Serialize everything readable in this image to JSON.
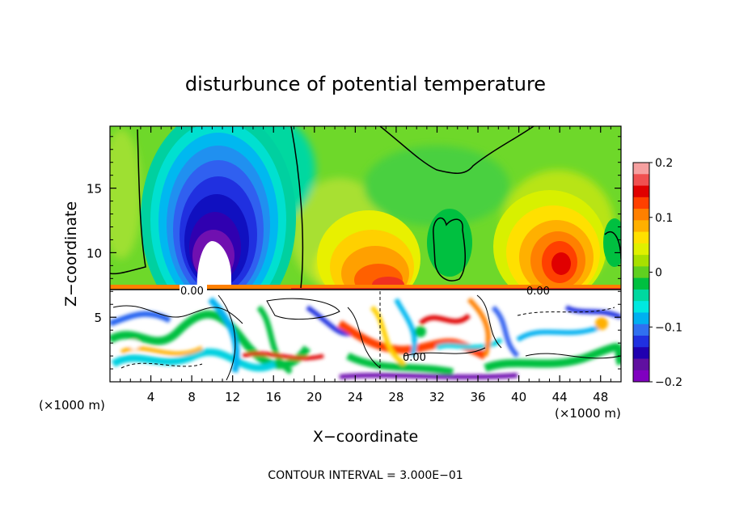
{
  "chart_data": {
    "type": "heatmap",
    "title": "disturbunce of potential temperature",
    "xlabel": "X−coordinate",
    "ylabel": "Z−coordinate",
    "x_unit": "(×1000 m)",
    "x_unit_right": "(×1000 m)",
    "xlim": [
      0,
      50
    ],
    "ylim": [
      0,
      19.8
    ],
    "x_ticks": [
      4,
      8,
      12,
      16,
      20,
      24,
      28,
      32,
      36,
      40,
      44,
      48
    ],
    "y_ticks": [
      5,
      10,
      15
    ],
    "colorbar": {
      "range": [
        -0.2,
        0.2
      ],
      "tick_values": [
        0.2,
        0.1,
        0,
        -0.1,
        -0.2
      ],
      "tick_labels": [
        "0.2",
        "0.1",
        "0",
        "−0.1",
        "−0.2"
      ],
      "colors": [
        "#f6a0a0",
        "#f05050",
        "#e00000",
        "#ff4000",
        "#ff8000",
        "#ffb000",
        "#ffe000",
        "#e0f000",
        "#a8e000",
        "#60d020",
        "#00c040",
        "#00d8a0",
        "#00e8e0",
        "#00b0f0",
        "#3070f0",
        "#2030e0",
        "#2000b0",
        "#6010a0",
        "#8000c0"
      ]
    },
    "contour_labels": [
      {
        "text": "0.00",
        "x": 8,
        "z": 7.0
      },
      {
        "text": "0.00",
        "x": 41.5,
        "z": 7.0
      },
      {
        "text": "0.00",
        "x": 29,
        "z": 1.9
      }
    ],
    "features": [
      {
        "kind": "negative anomaly",
        "x": 11.5,
        "z": 13.5,
        "min": -0.2
      },
      {
        "kind": "positive anomaly",
        "x": 43,
        "z": 9.5,
        "max": 0.12
      },
      {
        "kind": "positive anomaly",
        "x": 26,
        "z": 9.0,
        "max": 0.1
      }
    ]
  },
  "footer": {
    "interval_text": "CONTOUR INTERVAL = 3.000E−01"
  }
}
